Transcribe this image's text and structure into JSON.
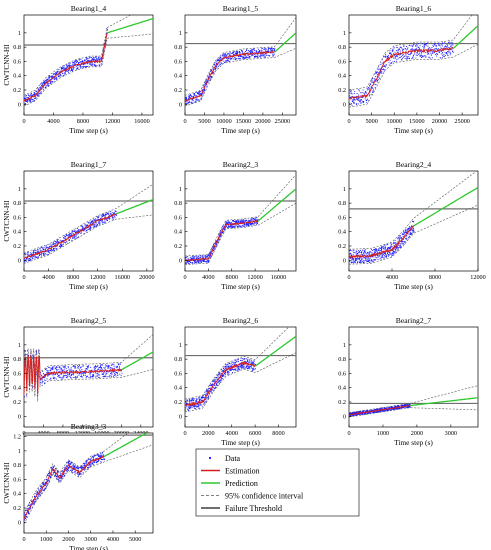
{
  "figure": {
    "legend": [
      {
        "label": "Data",
        "color": "#1a1aff",
        "style": "dots"
      },
      {
        "label": "Estimation",
        "color": "#d62020",
        "style": "line"
      },
      {
        "label": "Prediction",
        "color": "#2ec82e",
        "style": "line"
      },
      {
        "label": "95% confidence interval",
        "color": "#555555",
        "style": "dashed"
      },
      {
        "label": "Failure Threshold",
        "color": "#6e6e6e",
        "style": "thick"
      }
    ]
  },
  "chart_data": [
    {
      "type": "scatter",
      "title": "Bearing1_4",
      "xlabel": "Time step (s)",
      "ylabel": "CWTCNN-HI",
      "xlim": [
        0,
        17500
      ],
      "ylim": [
        -0.15,
        1.25
      ],
      "xticks": [
        0,
        4000,
        8000,
        12000,
        16000
      ],
      "yticks": [
        0,
        0.2,
        0.4,
        0.6,
        0.8,
        1
      ],
      "threshold": 0.83,
      "curve_end": 11300,
      "pred_end_value": 1.2,
      "noise": 0.05,
      "shape": "linear_then_jump",
      "points": [
        [
          0,
          0.05
        ],
        [
          1500,
          0.12
        ],
        [
          3000,
          0.3
        ],
        [
          5000,
          0.45
        ],
        [
          7000,
          0.55
        ],
        [
          9000,
          0.6
        ],
        [
          10500,
          0.6
        ],
        [
          11300,
          1.0
        ]
      ]
    },
    {
      "type": "scatter",
      "title": "Bearing1_5",
      "xlabel": "Time step (s)",
      "ylabel": "",
      "xlim": [
        0,
        28500
      ],
      "ylim": [
        -0.15,
        1.25
      ],
      "xticks": [
        0,
        5000,
        10000,
        15000,
        20000,
        25000
      ],
      "yticks": [
        0,
        0.2,
        0.4,
        0.6,
        0.8,
        1
      ],
      "threshold": 0.85,
      "curve_end": 23000,
      "pred_end_value": 1.0,
      "noise": 0.05,
      "shape": "sigmoid",
      "points": [
        [
          0,
          0.05
        ],
        [
          4000,
          0.12
        ],
        [
          6000,
          0.35
        ],
        [
          8000,
          0.55
        ],
        [
          10000,
          0.65
        ],
        [
          15000,
          0.7
        ],
        [
          20000,
          0.72
        ],
        [
          23000,
          0.73
        ]
      ]
    },
    {
      "type": "scatter",
      "title": "Bearing1_6",
      "xlabel": "Time step (s)",
      "ylabel": "",
      "xlim": [
        0,
        28500
      ],
      "ylim": [
        -0.15,
        1.25
      ],
      "xticks": [
        0,
        5000,
        10000,
        15000,
        20000,
        25000
      ],
      "yticks": [
        0,
        0.2,
        0.4,
        0.6,
        0.8,
        1
      ],
      "threshold": 0.85,
      "curve_end": 23000,
      "pred_end_value": 1.1,
      "noise": 0.08,
      "shape": "sigmoid",
      "points": [
        [
          0,
          0.08
        ],
        [
          4000,
          0.12
        ],
        [
          6000,
          0.35
        ],
        [
          8000,
          0.6
        ],
        [
          10000,
          0.7
        ],
        [
          15000,
          0.75
        ],
        [
          20000,
          0.75
        ],
        [
          23000,
          0.78
        ]
      ]
    },
    {
      "type": "scatter",
      "title": "Bearing1_7",
      "xlabel": "Time step (s)",
      "ylabel": "CWTCNN-HI",
      "xlim": [
        0,
        21000
      ],
      "ylim": [
        -0.15,
        1.25
      ],
      "xticks": [
        0,
        4000,
        8000,
        12000,
        16000,
        20000
      ],
      "yticks": [
        0,
        0.2,
        0.4,
        0.6,
        0.8,
        1
      ],
      "threshold": 0.83,
      "curve_end": 15000,
      "pred_end_value": 0.85,
      "noise": 0.05,
      "shape": "linear",
      "points": [
        [
          0,
          0.03
        ],
        [
          4000,
          0.15
        ],
        [
          8000,
          0.35
        ],
        [
          12000,
          0.55
        ],
        [
          15000,
          0.65
        ]
      ]
    },
    {
      "type": "scatter",
      "title": "Bearing2_3",
      "xlabel": "Time step (s)",
      "ylabel": "",
      "xlim": [
        0,
        19000
      ],
      "ylim": [
        -0.15,
        1.25
      ],
      "xticks": [
        0,
        4000,
        8000,
        12000,
        16000
      ],
      "yticks": [
        0,
        0.2,
        0.4,
        0.6,
        0.8,
        1
      ],
      "threshold": 0.83,
      "curve_end": 12500,
      "pred_end_value": 1.0,
      "noise": 0.04,
      "shape": "step",
      "points": [
        [
          0,
          0.0
        ],
        [
          4000,
          0.02
        ],
        [
          6000,
          0.35
        ],
        [
          7000,
          0.5
        ],
        [
          10000,
          0.52
        ],
        [
          12500,
          0.55
        ]
      ]
    },
    {
      "type": "scatter",
      "title": "Bearing2_4",
      "xlabel": "Time step (s)",
      "ylabel": "",
      "xlim": [
        0,
        12000
      ],
      "ylim": [
        -0.15,
        1.25
      ],
      "xticks": [
        0,
        4000,
        8000,
        12000
      ],
      "yticks": [
        0,
        0.2,
        0.4,
        0.6,
        0.8,
        1
      ],
      "threshold": 0.72,
      "curve_end": 6000,
      "pred_end_value": 1.02,
      "noise": 0.07,
      "shape": "exp",
      "points": [
        [
          0,
          0.05
        ],
        [
          2000,
          0.06
        ],
        [
          4000,
          0.15
        ],
        [
          5000,
          0.3
        ],
        [
          6000,
          0.48
        ]
      ]
    },
    {
      "type": "scatter",
      "title": "Bearing2_5",
      "xlabel": "Time step (s)",
      "ylabel": "CWTCNN-HI",
      "xlim": [
        0,
        26500
      ],
      "ylim": [
        -0.15,
        1.25
      ],
      "xticks": [
        0,
        4000,
        8000,
        12000,
        16000,
        20000,
        24000
      ],
      "yticks": [
        0,
        0.2,
        0.4,
        0.6,
        0.8,
        1
      ],
      "threshold": 0.82,
      "curve_end": 20000,
      "pred_end_value": 0.9,
      "noise": 0.07,
      "shape": "spiky_flat",
      "points": [
        [
          0,
          0.4
        ],
        [
          3000,
          0.5
        ],
        [
          5000,
          0.6
        ],
        [
          10000,
          0.62
        ],
        [
          15000,
          0.63
        ],
        [
          20000,
          0.65
        ]
      ]
    },
    {
      "type": "scatter",
      "title": "Bearing2_6",
      "xlabel": "Time step (s)",
      "ylabel": "",
      "xlim": [
        0,
        9500
      ],
      "ylim": [
        -0.15,
        1.25
      ],
      "xticks": [
        0,
        2000,
        4000,
        6000,
        8000
      ],
      "yticks": [
        0,
        0.2,
        0.4,
        0.6,
        0.8,
        1
      ],
      "threshold": 0.85,
      "curve_end": 6000,
      "pred_end_value": 1.12,
      "noise": 0.06,
      "shape": "sigmoid",
      "points": [
        [
          0,
          0.15
        ],
        [
          1500,
          0.2
        ],
        [
          2500,
          0.45
        ],
        [
          3500,
          0.65
        ],
        [
          5000,
          0.75
        ],
        [
          6000,
          0.7
        ]
      ]
    },
    {
      "type": "scatter",
      "title": "Bearing2_7",
      "xlabel": "Time step (s)",
      "ylabel": "",
      "xlim": [
        0,
        3800
      ],
      "ylim": [
        -0.15,
        1.25
      ],
      "xticks": [
        0,
        1000,
        2000,
        3000
      ],
      "yticks": [
        0,
        0.2,
        0.4,
        0.6,
        0.8,
        1
      ],
      "threshold": 0.18,
      "curve_end": 1800,
      "pred_end_value": 0.26,
      "noise": 0.02,
      "shape": "linear",
      "points": [
        [
          0,
          0.02
        ],
        [
          1800,
          0.15
        ]
      ]
    },
    {
      "type": "scatter",
      "title": "Bearing3_3",
      "xlabel": "Time step (s)",
      "ylabel": "CWTCNN-HI",
      "xlim": [
        0,
        5800
      ],
      "ylim": [
        -0.15,
        1.25
      ],
      "xticks": [
        0,
        1000,
        2000,
        3000,
        4000,
        5000
      ],
      "yticks": [
        0,
        0.2,
        0.4,
        0.6,
        0.8,
        1.0,
        1.2
      ],
      "threshold": 1.22,
      "curve_end": 3600,
      "pred_end_value": 1.3,
      "noise": 0.05,
      "shape": "zigzag",
      "points": [
        [
          0,
          0.05
        ],
        [
          500,
          0.35
        ],
        [
          1000,
          0.55
        ],
        [
          1300,
          0.75
        ],
        [
          1600,
          0.62
        ],
        [
          2000,
          0.8
        ],
        [
          2500,
          0.7
        ],
        [
          3000,
          0.85
        ],
        [
          3600,
          0.92
        ]
      ]
    }
  ]
}
